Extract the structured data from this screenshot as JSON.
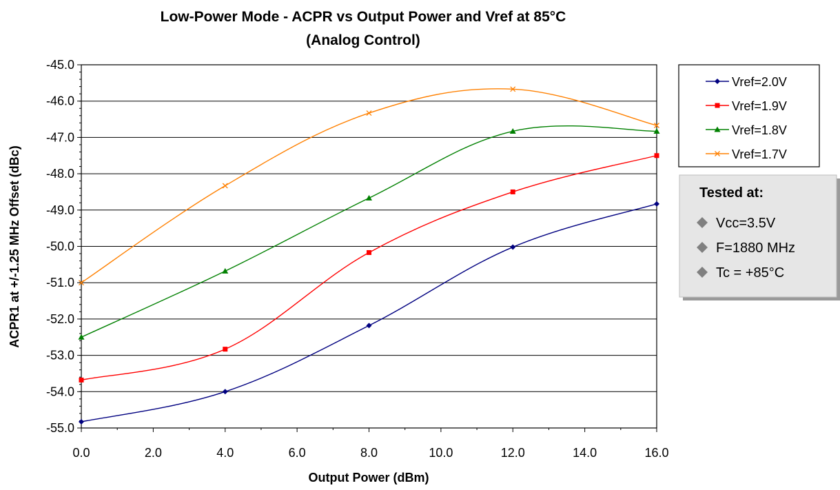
{
  "chart_data": {
    "type": "line",
    "title_line1": "Low-Power Mode - ACPR vs Output Power and Vref at 85°C",
    "title_line2": "(Analog Control)",
    "xlabel": "Output Power (dBm)",
    "ylabel": "ACPR1 at +/-1.25 MHz Offset (dBc)",
    "xlim": [
      0,
      16
    ],
    "ylim": [
      -55,
      -45
    ],
    "x_ticks": [
      "0.0",
      "2.0",
      "4.0",
      "6.0",
      "8.0",
      "10.0",
      "12.0",
      "14.0",
      "16.0"
    ],
    "y_ticks": [
      "-45.0",
      "-46.0",
      "-47.0",
      "-48.0",
      "-49.0",
      "-50.0",
      "-51.0",
      "-52.0",
      "-53.0",
      "-54.0",
      "-55.0"
    ],
    "grid": "horizontal",
    "legend_position": "right",
    "x": [
      0,
      4,
      8,
      12,
      16
    ],
    "series": [
      {
        "name": "Vref=2.0V",
        "color": "#000080",
        "marker": "diamond",
        "values": [
          -54.83,
          -54.0,
          -52.18,
          -50.02,
          -48.83
        ]
      },
      {
        "name": "Vref=1.9V",
        "color": "#ff0000",
        "marker": "square",
        "values": [
          -53.68,
          -52.83,
          -50.17,
          -48.5,
          -47.5
        ]
      },
      {
        "name": "Vref=1.8V",
        "color": "#008000",
        "marker": "triangle",
        "values": [
          -52.5,
          -50.68,
          -48.67,
          -46.83,
          -46.83
        ]
      },
      {
        "name": "Vref=1.7V",
        "color": "#ff8000",
        "marker": "x",
        "values": [
          -51.0,
          -48.33,
          -46.33,
          -45.67,
          -46.67
        ]
      }
    ]
  },
  "notes": {
    "title": "Tested at:",
    "items": [
      {
        "text": "Vcc=3.5V",
        "icon": "diamond-bullet-icon"
      },
      {
        "text": "F=1880 MHz",
        "icon": "diamond-bullet-icon"
      },
      {
        "text": "Tc = +85°C",
        "icon": "diamond-bullet-icon"
      }
    ],
    "colors": {
      "background": "#e6e6e6",
      "shadow": "#9a9a9a",
      "bullet": "#808080"
    }
  }
}
